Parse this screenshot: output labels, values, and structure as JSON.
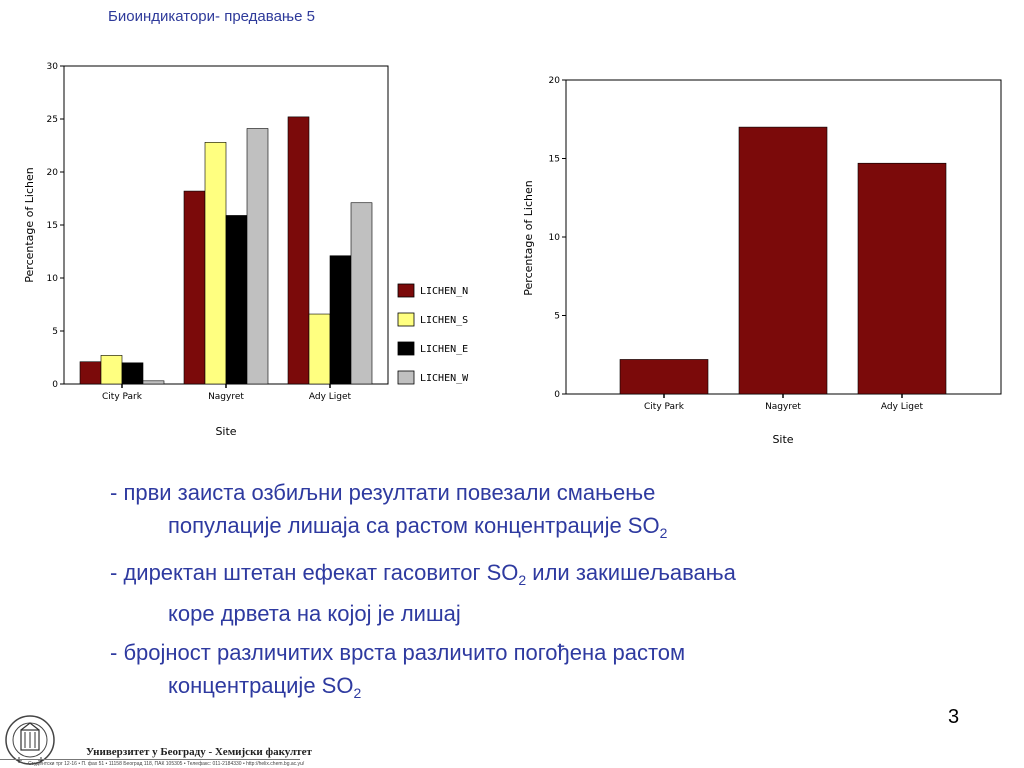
{
  "slide": {
    "title": "Биоиндикатори- предавање 5",
    "page_number": "3"
  },
  "bullets": [
    {
      "line1": "- први заиста озбиљни резултати повезали смањење",
      "line2_pre": "популације лишаја са растом концентрације SO",
      "sub": "2",
      "line2_post": ""
    },
    {
      "line1_pre": "- директан штетан ефекат гасовитог SO",
      "sub": "2",
      "line1_post": " или закишељавања",
      "line2": "коре дрвета на којој је лишај"
    },
    {
      "line1": "- бројност различитих врста различито погођена растом",
      "line2_pre": "концентрације SO",
      "sub": "2",
      "line2_post": ""
    }
  ],
  "footer": {
    "organization": "Универзитет у Београду - Хемијски факултет",
    "address": "Студентски трг 12-16 • П. фах 51 • 11158 Београд 118, ПАК 105305 • Телефакс: 011-2184330 • http://helix.chem.bg.ac.yu/",
    "logo_icon": "university-seal-icon"
  },
  "chart_data": [
    {
      "type": "bar",
      "title": "",
      "xlabel": "Site",
      "ylabel": "Percentage of Lichen",
      "categories": [
        "City Park",
        "Nagyret",
        "Ady Liget"
      ],
      "ylim": [
        0,
        30
      ],
      "yticks": [
        "0",
        "5",
        "10",
        "15",
        "20",
        "25",
        "30"
      ],
      "legend_position": "right",
      "series": [
        {
          "name": "LICHEN_N",
          "color": "#7b0a0a",
          "values": [
            2.1,
            18.2,
            25.2
          ]
        },
        {
          "name": "LICHEN_S",
          "color": "#ffff80",
          "values": [
            2.7,
            22.8,
            6.6
          ]
        },
        {
          "name": "LICHEN_E",
          "color": "#000000",
          "values": [
            2.0,
            15.9,
            12.1
          ]
        },
        {
          "name": "LICHEN_W",
          "color": "#c0c0c0",
          "values": [
            0.3,
            24.1,
            17.1
          ]
        }
      ]
    },
    {
      "type": "bar",
      "title": "",
      "xlabel": "Site",
      "ylabel": "Percentage of Lichen",
      "categories": [
        "City Park",
        "Nagyret",
        "Ady Liget"
      ],
      "ylim": [
        0,
        20
      ],
      "yticks": [
        "0",
        "5",
        "10",
        "15",
        "20"
      ],
      "series": [
        {
          "color": "#7b0a0a",
          "values": [
            2.2,
            17.0,
            14.7
          ]
        }
      ]
    }
  ]
}
